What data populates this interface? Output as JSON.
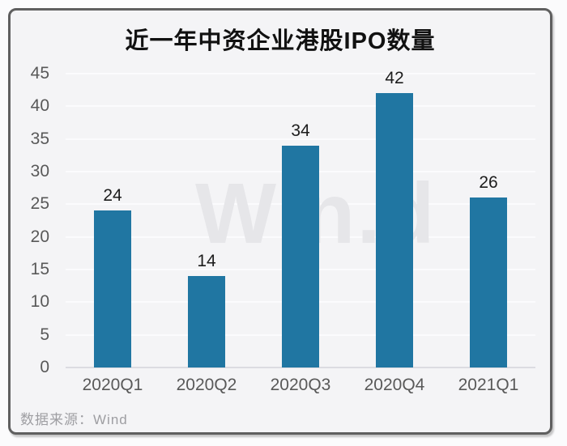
{
  "page": {
    "title": "近一年中资企业港股IPO数量",
    "watermark": "Win.d",
    "source_label": "数据来源：Wind"
  },
  "colors": {
    "bar": "#2076a2",
    "card_background": "#f4f4f6",
    "card_border": "#5f5f5f",
    "gridline": "#fbfbfd",
    "baseline": "#dcdce1",
    "axis_text": "#595959",
    "value_text": "#1c1c1c",
    "title_text": "#111111",
    "watermark_text": "#e6e6e9",
    "source_text": "#9e9ea2"
  },
  "chart_data": {
    "type": "bar",
    "title": "近一年中资企业港股IPO数量",
    "categories": [
      "2020Q1",
      "2020Q2",
      "2020Q3",
      "2020Q4",
      "2021Q1"
    ],
    "values": [
      24,
      14,
      34,
      42,
      26
    ],
    "xlabel": "",
    "ylabel": "",
    "ylim": [
      0,
      45
    ],
    "ytick_step": 5,
    "grid": true,
    "legend_position": "none",
    "data_labels": true,
    "source": "Wind"
  }
}
